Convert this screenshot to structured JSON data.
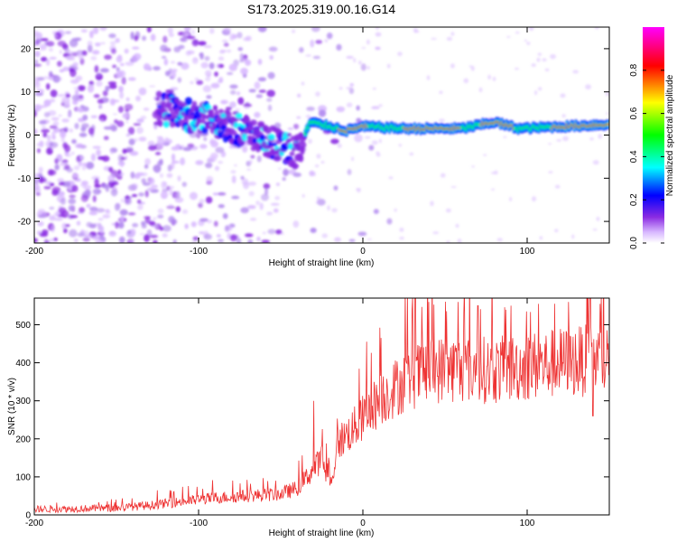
{
  "title": "S173.2025.319.00.16.G14",
  "chart_data": [
    {
      "type": "heatmap",
      "title": "S173.2025.319.00.16.G14",
      "xlabel": "Height of straight line (km)",
      "ylabel": "Frequency (Hz)",
      "xlim": [
        -200,
        150
      ],
      "ylim": [
        -25,
        25
      ],
      "xticks": [
        -200,
        -100,
        0,
        100
      ],
      "yticks": [
        -20,
        -10,
        0,
        10,
        20
      ],
      "colorbar": {
        "label": "Normalized spectral amplitude",
        "range": [
          0.0,
          1.0
        ],
        "ticks": [
          "0.0",
          "0.2",
          "0.4",
          "0.6",
          "0.8"
        ],
        "colors": [
          "#ffffff",
          "#d8b8ff",
          "#8a2be2",
          "#0000ff",
          "#00ffff",
          "#00ff00",
          "#ffff00",
          "#ff0000",
          "#ff00ff"
        ]
      },
      "ridge": [
        {
          "x": -120,
          "f": 6
        },
        {
          "x": -100,
          "f": 4
        },
        {
          "x": -80,
          "f": 2
        },
        {
          "x": -60,
          "f": -1
        },
        {
          "x": -40,
          "f": -4
        },
        {
          "x": -32,
          "f": 3
        },
        {
          "x": -20,
          "f": 2
        },
        {
          "x": -10,
          "f": 1
        },
        {
          "x": 0,
          "f": 2
        },
        {
          "x": 25,
          "f": 1.5
        },
        {
          "x": 60,
          "f": 1.5
        },
        {
          "x": 80,
          "f": 3
        },
        {
          "x": 95,
          "f": 1.5
        },
        {
          "x": 150,
          "f": 2.5
        }
      ]
    },
    {
      "type": "line",
      "xlabel": "Height of straight line (km)",
      "ylabel": "SNR (10 * v/v)",
      "xlim": [
        -200,
        150
      ],
      "ylim": [
        0,
        570
      ],
      "xticks": [
        -200,
        -100,
        0,
        100
      ],
      "yticks": [
        0,
        100,
        200,
        300,
        400,
        500
      ],
      "color": "#ee3333",
      "trend": [
        {
          "x": -200,
          "snr": 15
        },
        {
          "x": -150,
          "snr": 18
        },
        {
          "x": -130,
          "snr": 25
        },
        {
          "x": -110,
          "snr": 35
        },
        {
          "x": -90,
          "snr": 45
        },
        {
          "x": -70,
          "snr": 50
        },
        {
          "x": -50,
          "snr": 55
        },
        {
          "x": -40,
          "snr": 70
        },
        {
          "x": -30,
          "snr": 120
        },
        {
          "x": -25,
          "snr": 150
        },
        {
          "x": -20,
          "snr": 70
        },
        {
          "x": -15,
          "snr": 190
        },
        {
          "x": -5,
          "snr": 230
        },
        {
          "x": 5,
          "snr": 280
        },
        {
          "x": 15,
          "snr": 320
        },
        {
          "x": 25,
          "snr": 350
        },
        {
          "x": 40,
          "snr": 380
        },
        {
          "x": 60,
          "snr": 385
        },
        {
          "x": 80,
          "snr": 380
        },
        {
          "x": 100,
          "snr": 390
        },
        {
          "x": 120,
          "snr": 400
        },
        {
          "x": 150,
          "snr": 410
        }
      ],
      "peaks": [
        {
          "x": -30,
          "snr": 300
        },
        {
          "x": 30,
          "snr": 540
        },
        {
          "x": 40,
          "snr": 560
        },
        {
          "x": 58,
          "snr": 560
        },
        {
          "x": 70,
          "snr": 550
        },
        {
          "x": 90,
          "snr": 550
        },
        {
          "x": 125,
          "snr": 560
        },
        {
          "x": 138,
          "snr": 560
        },
        {
          "x": 145,
          "snr": 575
        }
      ],
      "dips": [
        {
          "x": 140,
          "snr": 260
        }
      ]
    }
  ]
}
